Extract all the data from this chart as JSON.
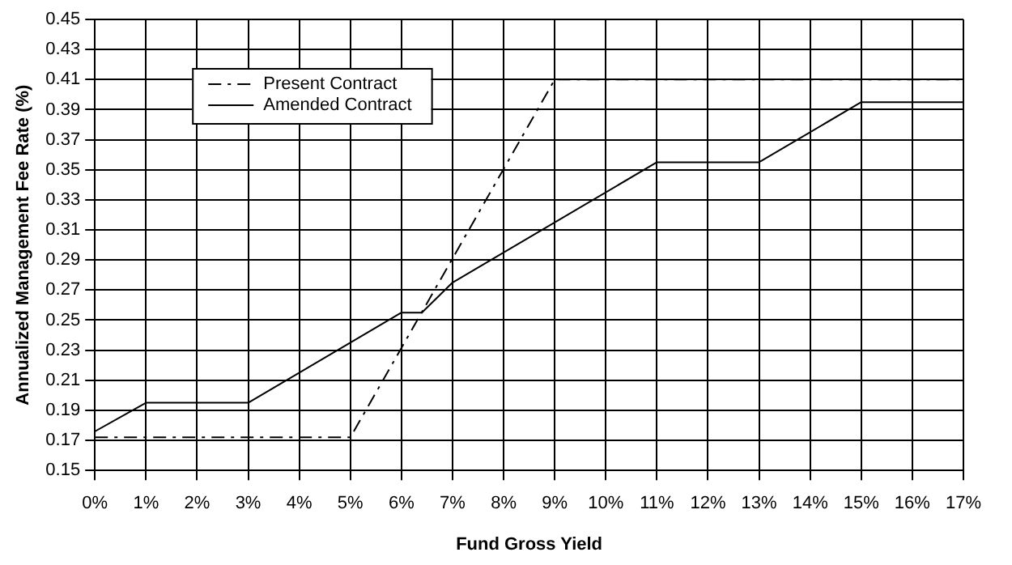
{
  "chart_data": {
    "type": "line",
    "xlabel": "Fund Gross Yield",
    "ylabel": "Annualized Management Fee Rate (%)",
    "xlim": [
      0,
      17
    ],
    "xticks": [
      {
        "value": 0,
        "label": "0%"
      },
      {
        "value": 1,
        "label": "1%"
      },
      {
        "value": 2,
        "label": "2%"
      },
      {
        "value": 3,
        "label": "3%"
      },
      {
        "value": 4,
        "label": "4%"
      },
      {
        "value": 5,
        "label": "5%"
      },
      {
        "value": 6,
        "label": "6%"
      },
      {
        "value": 7,
        "label": "7%"
      },
      {
        "value": 8,
        "label": "8%"
      },
      {
        "value": 9,
        "label": "9%"
      },
      {
        "value": 10,
        "label": "10%"
      },
      {
        "value": 11,
        "label": "11%"
      },
      {
        "value": 12,
        "label": "12%"
      },
      {
        "value": 13,
        "label": "13%"
      },
      {
        "value": 14,
        "label": "14%"
      },
      {
        "value": 15,
        "label": "15%"
      },
      {
        "value": 16,
        "label": "16%"
      },
      {
        "value": 17,
        "label": "17%"
      }
    ],
    "ylim": [
      0.15,
      0.45
    ],
    "yticks": [
      0.15,
      0.17,
      0.19,
      0.21,
      0.23,
      0.25,
      0.27,
      0.29,
      0.31,
      0.33,
      0.35,
      0.37,
      0.39,
      0.41,
      0.43,
      0.45
    ],
    "grid": true,
    "legend": "top left",
    "marker": "none",
    "series": [
      {
        "name": "Present Contract",
        "color": "#000000",
        "line_style": "dashed",
        "x": [
          0,
          5,
          9,
          17
        ],
        "values": [
          0.172,
          0.172,
          0.41,
          0.41
        ]
      },
      {
        "name": "Amended Contract",
        "color": "#000000",
        "line_style": "solid",
        "x": [
          0,
          1,
          3,
          6,
          6.4,
          7,
          11,
          13,
          15,
          17
        ],
        "values": [
          0.176,
          0.195,
          0.195,
          0.255,
          0.255,
          0.275,
          0.355,
          0.355,
          0.395,
          0.395
        ]
      }
    ]
  }
}
